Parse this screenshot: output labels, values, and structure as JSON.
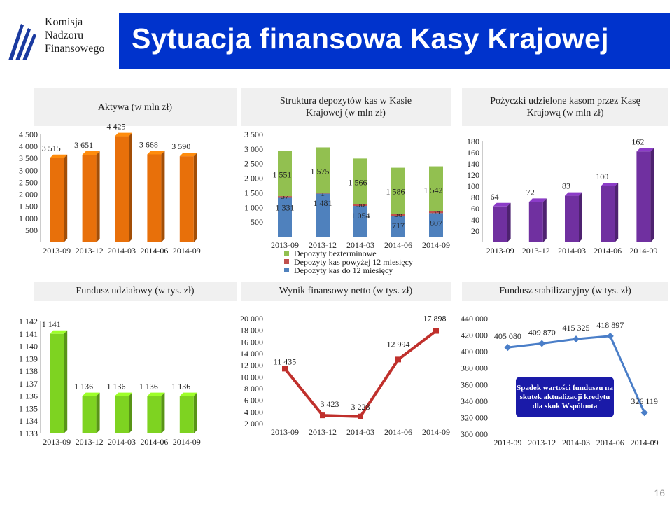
{
  "header": {
    "logo_lines": [
      "Komisja",
      "Nadzoru",
      "Finansowego"
    ],
    "title": "Sytuacja finansowa Kasy Krajowej"
  },
  "colors": {
    "banner": "#0033cc",
    "orange": "#e8700a",
    "purple": "#7030a0",
    "lime": "#7ed321",
    "green_bar": "#92c050",
    "red_bar": "#c0504d",
    "blue_bar": "#4f81bd",
    "red_line": "#c0302c",
    "blue_line": "#4a7ec8"
  },
  "page_number": "16",
  "note": "Spadek wartości funduszu na skutek aktualizacji kredytu dla skok Wspólnota",
  "chart_data": [
    {
      "id": "aktywa",
      "type": "bar",
      "title": "Aktywa (w mln zł)",
      "categories": [
        "2013-09",
        "2013-12",
        "2014-03",
        "2014-06",
        "2014-09"
      ],
      "values": [
        3515,
        3651,
        4425,
        3668,
        3590
      ],
      "labels": [
        "3 515",
        "3 651",
        "4 425",
        "3 668",
        "3 590"
      ],
      "ylim": [
        0,
        4500
      ],
      "yticks": [
        500,
        1000,
        1500,
        2000,
        2500,
        3000,
        3500,
        4000,
        4500
      ],
      "yticklabels": [
        "500",
        "1 000",
        "1 500",
        "2 000",
        "2 500",
        "3 000",
        "3 500",
        "4 000",
        "4 500"
      ],
      "color": "#e8700a"
    },
    {
      "id": "depozyty",
      "type": "bar",
      "stacked": true,
      "title": "Struktura depozytów kas w Kasie Krajowej (w mln zł)",
      "categories": [
        "2013-09",
        "2013-12",
        "2014-03",
        "2014-06",
        "2014-09"
      ],
      "ylim": [
        0,
        3500
      ],
      "yticks": [
        500,
        1000,
        1500,
        2000,
        2500,
        3000,
        3500
      ],
      "yticklabels": [
        "500",
        "1 000",
        "1 500",
        "2 000",
        "2 500",
        "3 000",
        "3 500"
      ],
      "series": [
        {
          "name": "Depozyty kas do 12 miesięcy",
          "values": [
            1331,
            1481,
            1054,
            717,
            807
          ],
          "labels": [
            "1 331",
            "1 481",
            "1 054",
            "717",
            "807"
          ],
          "color": "#4f81bd"
        },
        {
          "name": "Depozyty kas powyżej 12 miesięcy",
          "values": [
            57,
            1,
            56,
            56,
            59
          ],
          "labels": [
            "57",
            "1",
            "56",
            "56",
            "59"
          ],
          "color": "#c0504d"
        },
        {
          "name": "Depozyty bezterminowe",
          "values": [
            1551,
            1575,
            1566,
            1586,
            1542
          ],
          "labels": [
            "1 551",
            "1 575",
            "1 566",
            "1 586",
            "1 542"
          ],
          "color": "#92c050"
        }
      ],
      "legend": "bottom"
    },
    {
      "id": "pozyczki",
      "type": "bar",
      "title": "Pożyczki udzielone kasom przez Kasę Krajową (w mln zł)",
      "categories": [
        "2013-09",
        "2013-12",
        "2014-03",
        "2014-06",
        "2014-09"
      ],
      "values": [
        64,
        72,
        83,
        100,
        162
      ],
      "labels": [
        "64",
        "72",
        "83",
        "100",
        "162"
      ],
      "ylim": [
        0,
        180
      ],
      "yticks": [
        20,
        40,
        60,
        80,
        100,
        120,
        140,
        160,
        180
      ],
      "yticklabels": [
        "20",
        "40",
        "60",
        "80",
        "100",
        "120",
        "140",
        "160",
        "180"
      ],
      "color": "#7030a0"
    },
    {
      "id": "fundusz_udzialowy",
      "type": "bar",
      "title": "Fundusz udziałowy (w tys. zł)",
      "categories": [
        "2013-09",
        "2013-12",
        "2014-03",
        "2014-06",
        "2014-09"
      ],
      "values": [
        1141,
        1136,
        1136,
        1136,
        1136
      ],
      "labels": [
        "1 141",
        "1 136",
        "1 136",
        "1 136",
        "1 136"
      ],
      "ylim": [
        1133,
        1142
      ],
      "yticks": [
        1133,
        1134,
        1135,
        1136,
        1137,
        1138,
        1139,
        1140,
        1141,
        1142
      ],
      "yticklabels": [
        "1 133",
        "1 134",
        "1 135",
        "1 136",
        "1 137",
        "1 138",
        "1 139",
        "1 140",
        "1 141",
        "1 142"
      ],
      "color": "#7ed321"
    },
    {
      "id": "wynik_finansowy",
      "type": "line",
      "title": "Wynik finansowy netto (w tys. zł)",
      "categories": [
        "2013-09",
        "2013-12",
        "2014-03",
        "2014-06",
        "2014-09"
      ],
      "values": [
        11435,
        3423,
        3228,
        12994,
        17898
      ],
      "labels": [
        "11 435",
        "3 423",
        "3 228",
        "12 994",
        "17 898"
      ],
      "ylim": [
        2000,
        20000
      ],
      "yticks": [
        2000,
        4000,
        6000,
        8000,
        10000,
        12000,
        14000,
        16000,
        18000,
        20000
      ],
      "yticklabels": [
        "2 000",
        "4 000",
        "6 000",
        "8 000",
        "10 000",
        "12 000",
        "14 000",
        "16 000",
        "18 000",
        "20 000"
      ],
      "color": "#c0302c"
    },
    {
      "id": "fundusz_stabilizacyjny",
      "type": "line",
      "title": "Fundusz stabilizacyjny (w tys. zł)",
      "categories": [
        "2013-09",
        "2013-12",
        "2014-03",
        "2014-06",
        "2014-09"
      ],
      "values": [
        405080,
        409870,
        415325,
        418897,
        326119
      ],
      "labels": [
        "405 080",
        "409 870",
        "415 325",
        "418 897",
        "326 119"
      ],
      "ylim": [
        300000,
        440000
      ],
      "yticks": [
        300000,
        320000,
        340000,
        360000,
        380000,
        400000,
        420000,
        440000
      ],
      "yticklabels": [
        "300 000",
        "320 000",
        "340 000",
        "360 000",
        "380 000",
        "400 000",
        "420 000",
        "440 000"
      ],
      "color": "#4a7ec8"
    }
  ]
}
